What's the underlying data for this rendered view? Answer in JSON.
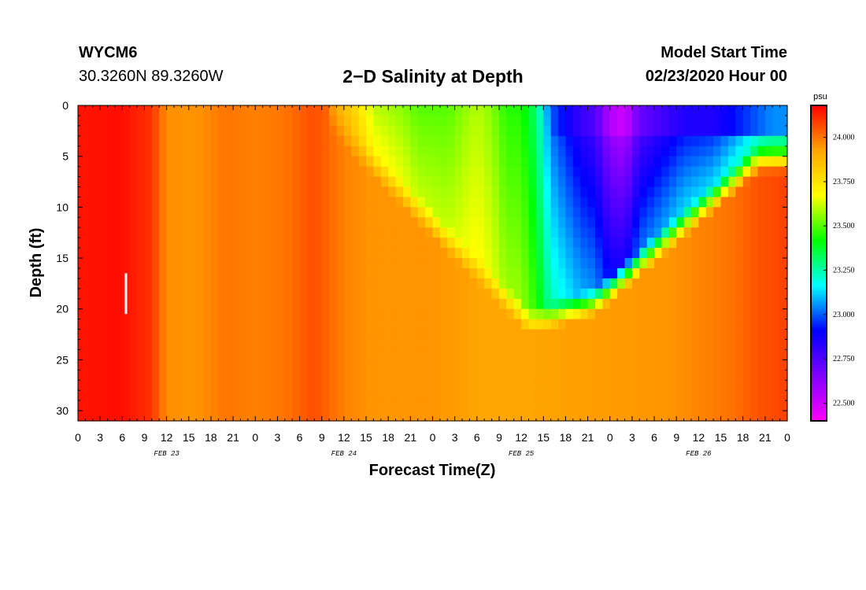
{
  "header": {
    "station_id": "WYCM6",
    "station_coords": "30.3260N 89.3260W",
    "title": "2−D Salinity at Depth",
    "model_start_label": "Model Start Time",
    "model_start_value": "02/23/2020 Hour 00"
  },
  "chart_data": {
    "type": "heatmap",
    "title": "2−D Salinity at Depth",
    "xlabel": "Forecast Time(Z)",
    "ylabel": "Depth (ft)",
    "x_range_hours": [
      0,
      96
    ],
    "y_range_ft": [
      0,
      31
    ],
    "x_tick_labels": [
      "0",
      "3",
      "6",
      "9",
      "12",
      "15",
      "18",
      "21",
      "0",
      "3",
      "6",
      "9",
      "12",
      "15",
      "18",
      "21",
      "0",
      "3",
      "6",
      "9",
      "12",
      "15",
      "18",
      "21",
      "0",
      "3",
      "6",
      "9",
      "12",
      "15",
      "18",
      "21",
      "0"
    ],
    "x_tick_hours": [
      0,
      3,
      6,
      9,
      12,
      15,
      18,
      21,
      24,
      27,
      30,
      33,
      36,
      39,
      42,
      45,
      48,
      51,
      54,
      57,
      60,
      63,
      66,
      69,
      72,
      75,
      78,
      81,
      84,
      87,
      90,
      93,
      96
    ],
    "day_labels": [
      {
        "label": "FEB 23",
        "hour": 12
      },
      {
        "label": "FEB 24",
        "hour": 36
      },
      {
        "label": "FEB 25",
        "hour": 60
      },
      {
        "label": "FEB 26",
        "hour": 84
      }
    ],
    "y_tick_values": [
      0,
      5,
      10,
      15,
      20,
      25,
      30
    ],
    "y_tick_labels": [
      "0",
      "5",
      "10",
      "15",
      "20",
      "25",
      "30"
    ],
    "colorbar": {
      "unit": "psu",
      "min": 22.4,
      "max": 24.18,
      "tick_values": [
        22.5,
        22.75,
        23.0,
        23.25,
        23.5,
        23.75,
        24.0
      ],
      "tick_labels": [
        "22.500",
        "22.750",
        "23.000",
        "23.250",
        "23.500",
        "23.750",
        "24.000"
      ],
      "colors": [
        "#ff00ff",
        "#8000ff",
        "#0000ff",
        "#00ffff",
        "#00ff00",
        "#ffff00",
        "#ffa500",
        "#ff0000"
      ]
    },
    "marker": {
      "hour": 6.5,
      "depth_from_ft": 16.5,
      "depth_to_ft": 20.5,
      "color": "#ffffff"
    },
    "grid_hours_per_cell": 1,
    "grid_ft_per_cell": 1,
    "approx_salinity_fields": {
      "surface_profile_hours": [
        0,
        6,
        10,
        12,
        16,
        20,
        24,
        28,
        32,
        34,
        36,
        38,
        40,
        42,
        44,
        46,
        48,
        50,
        52,
        54,
        56,
        58,
        60,
        62,
        64,
        66,
        68,
        70,
        72,
        74,
        76,
        78,
        80,
        82,
        84,
        86,
        88,
        90,
        92,
        94,
        96
      ],
      "surface_values_psu": [
        24.15,
        24.16,
        24.1,
        23.96,
        23.95,
        24.0,
        23.98,
        24.0,
        24.06,
        23.95,
        23.85,
        23.75,
        23.6,
        23.58,
        23.55,
        23.5,
        23.5,
        23.5,
        23.55,
        23.6,
        23.55,
        23.45,
        23.45,
        23.3,
        23.0,
        22.9,
        22.8,
        22.75,
        22.55,
        22.5,
        22.7,
        22.75,
        22.8,
        22.85,
        22.85,
        22.85,
        22.9,
        22.95,
        23.0,
        23.05,
        23.05
      ],
      "bottom_profile_hours": [
        0,
        6,
        10,
        12,
        16,
        20,
        24,
        28,
        32,
        36,
        40,
        48,
        56,
        64,
        72,
        80,
        88,
        92,
        96
      ],
      "bottom_values_psu": [
        24.15,
        24.16,
        24.1,
        23.96,
        23.95,
        24.0,
        23.98,
        24.0,
        24.06,
        23.98,
        23.95,
        23.95,
        23.92,
        23.93,
        23.94,
        23.95,
        24.0,
        24.05,
        24.08
      ]
    }
  }
}
